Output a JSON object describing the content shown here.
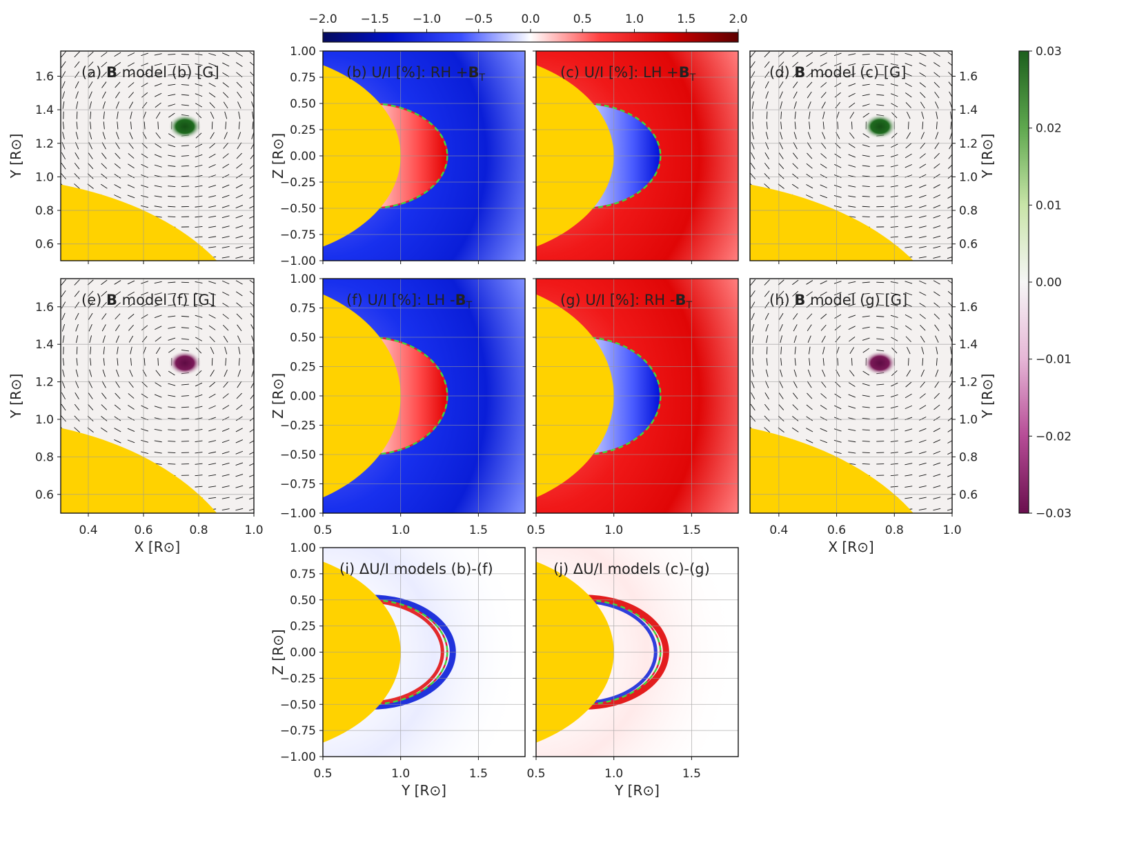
{
  "figure": {
    "colors": {
      "sun": "#FFD200",
      "field_bg": "#F4F1F0",
      "green_dot": "#1F6B1F",
      "purple_dot": "#7A1957",
      "contour_red": "#E0183B",
      "contour_green": "#3BDC3B",
      "grid": "#BBBBBB"
    },
    "ui_labels": {
      "x_axis_xy": "X [R⊙]",
      "y_axis_xy": "Y [R⊙]",
      "z_axis": "Z [R⊙]",
      "y_axis_yz": "Y [R⊙]"
    }
  },
  "chart_data": [
    {
      "id": "a",
      "type": "heatmap",
      "title_prefix": "(a) ",
      "title_bold": "B",
      "title_suffix": " model (b) [G]",
      "xlabel": "",
      "ylabel": "Y [R⊙]",
      "xlim": [
        0.3,
        1.0
      ],
      "ylim": [
        0.5,
        1.75
      ],
      "xticks": [
        0.4,
        0.6,
        0.8,
        1.0
      ],
      "yticks": [
        0.6,
        0.8,
        1.0,
        1.2,
        1.4,
        1.6
      ],
      "show_xticklabels": false,
      "ytick_side": "left",
      "sign": 1,
      "grid": true
    },
    {
      "id": "b",
      "type": "heatmap",
      "title_prefix": "(b) U/I [%]: RH +",
      "title_bold": "B",
      "title_sub": "T",
      "xlabel": "",
      "ylabel": "Z [R⊙]",
      "xlim": [
        0.5,
        1.8
      ],
      "ylim": [
        -1.0,
        1.0
      ],
      "xticks": [
        0.5,
        1.0,
        1.5
      ],
      "yticks": [
        -1.0,
        -0.75,
        -0.5,
        -0.25,
        0.0,
        0.25,
        0.5,
        0.75,
        1.0
      ],
      "show_xticklabels": false,
      "ytick_side": "left",
      "pattern": "blue_outer",
      "grid": true
    },
    {
      "id": "c",
      "type": "heatmap",
      "title_prefix": "(c) U/I [%]: LH +",
      "title_bold": "B",
      "title_sub": "T",
      "xlabel": "",
      "ylabel": "",
      "xlim": [
        0.5,
        1.8
      ],
      "ylim": [
        -1.0,
        1.0
      ],
      "xticks": [
        0.5,
        1.0,
        1.5
      ],
      "yticks": [
        -1.0,
        -0.75,
        -0.5,
        -0.25,
        0.0,
        0.25,
        0.5,
        0.75,
        1.0
      ],
      "show_xticklabels": false,
      "ytick_side": "none",
      "pattern": "red_outer",
      "grid": true
    },
    {
      "id": "d",
      "type": "heatmap",
      "title_prefix": "(d) ",
      "title_bold": "B",
      "title_suffix": " model (c) [G]",
      "xlabel": "",
      "ylabel": "Y [R⊙]",
      "xlim": [
        0.3,
        1.0
      ],
      "ylim": [
        0.5,
        1.75
      ],
      "xticks": [
        0.4,
        0.6,
        0.8,
        1.0
      ],
      "yticks": [
        0.6,
        0.8,
        1.0,
        1.2,
        1.4,
        1.6
      ],
      "show_xticklabels": false,
      "ytick_side": "right",
      "sign": 1,
      "grid": true
    },
    {
      "id": "e",
      "type": "heatmap",
      "title_prefix": "(e) ",
      "title_bold": "B",
      "title_suffix": " model (f) [G]",
      "xlabel": "X [R⊙]",
      "ylabel": "Y [R⊙]",
      "xlim": [
        0.3,
        1.0
      ],
      "ylim": [
        0.5,
        1.75
      ],
      "xticks": [
        0.4,
        0.6,
        0.8,
        1.0
      ],
      "yticks": [
        0.6,
        0.8,
        1.0,
        1.2,
        1.4,
        1.6
      ],
      "show_xticklabels": true,
      "ytick_side": "left",
      "sign": -1,
      "grid": true
    },
    {
      "id": "f",
      "type": "heatmap",
      "title_prefix": "(f) U/I [%]: LH -",
      "title_bold": "B",
      "title_sub": "T",
      "xlabel": "",
      "ylabel": "Z [R⊙]",
      "xlim": [
        0.5,
        1.8
      ],
      "ylim": [
        -1.0,
        1.0
      ],
      "xticks": [
        0.5,
        1.0,
        1.5
      ],
      "yticks": [
        -1.0,
        -0.75,
        -0.5,
        -0.25,
        0.0,
        0.25,
        0.5,
        0.75,
        1.0
      ],
      "show_xticklabels": true,
      "ytick_side": "left",
      "pattern": "blue_outer",
      "grid": true
    },
    {
      "id": "g",
      "type": "heatmap",
      "title_prefix": "(g) U/I [%]: RH -",
      "title_bold": "B",
      "title_sub": "T",
      "xlabel": "",
      "ylabel": "",
      "xlim": [
        0.5,
        1.8
      ],
      "ylim": [
        -1.0,
        1.0
      ],
      "xticks": [
        0.5,
        1.0,
        1.5
      ],
      "yticks": [
        -1.0,
        -0.75,
        -0.5,
        -0.25,
        0.0,
        0.25,
        0.5,
        0.75,
        1.0
      ],
      "show_xticklabels": true,
      "ytick_side": "none",
      "pattern": "red_outer",
      "grid": true
    },
    {
      "id": "h",
      "type": "heatmap",
      "title_prefix": "(h) ",
      "title_bold": "B",
      "title_suffix": " model (g) [G]",
      "xlabel": "X [R⊙]",
      "ylabel": "Y [R⊙]",
      "xlim": [
        0.3,
        1.0
      ],
      "ylim": [
        0.5,
        1.75
      ],
      "xticks": [
        0.4,
        0.6,
        0.8,
        1.0
      ],
      "yticks": [
        0.6,
        0.8,
        1.0,
        1.2,
        1.4,
        1.6
      ],
      "show_xticklabels": true,
      "ytick_side": "right",
      "sign": -1,
      "grid": true
    },
    {
      "id": "i",
      "type": "heatmap",
      "title_prefix": "(i) ΔU/I models (b)-(f)",
      "xlabel": "Y [R⊙]",
      "ylabel": "Z [R⊙]",
      "xlim": [
        0.5,
        1.8
      ],
      "ylim": [
        -1.0,
        1.0
      ],
      "xticks": [
        0.5,
        1.0,
        1.5
      ],
      "yticks": [
        -1.0,
        -0.75,
        -0.5,
        -0.25,
        0.0,
        0.25,
        0.5,
        0.75,
        1.0
      ],
      "show_xticklabels": true,
      "ytick_side": "left",
      "pattern": "diff_i",
      "grid": true
    },
    {
      "id": "j",
      "type": "heatmap",
      "title_prefix": "(j) ΔU/I models (c)-(g)",
      "xlabel": "Y [R⊙]",
      "ylabel": "",
      "xlim": [
        0.5,
        1.8
      ],
      "ylim": [
        -1.0,
        1.0
      ],
      "xticks": [
        0.5,
        1.0,
        1.5
      ],
      "yticks": [
        -1.0,
        -0.75,
        -0.5,
        -0.25,
        0.0,
        0.25,
        0.5,
        0.75,
        1.0
      ],
      "show_xticklabels": true,
      "ytick_side": "none",
      "pattern": "diff_j",
      "grid": true
    },
    {
      "id": "colorbar-top",
      "type": "colorbar",
      "orientation": "horizontal",
      "range": [
        -2.0,
        2.0
      ],
      "ticks": [
        -2.0,
        -1.5,
        -1.0,
        -0.5,
        0.0,
        0.5,
        1.0,
        1.5,
        2.0
      ],
      "tick_labels": [
        "−2.0",
        "−1.5",
        "−1.0",
        "−0.5",
        "0.0",
        "0.5",
        "1.0",
        "1.5",
        "2.0"
      ],
      "colors": [
        "#050B5E",
        "#0011CC",
        "#3A4FFF",
        "#FFFFFF",
        "#FF4040",
        "#D40000",
        "#5E0000"
      ]
    },
    {
      "id": "colorbar-right",
      "type": "colorbar",
      "orientation": "vertical",
      "range": [
        -0.03,
        0.03
      ],
      "ticks": [
        -0.03,
        -0.02,
        -0.01,
        0.0,
        0.01,
        0.02,
        0.03
      ],
      "tick_labels": [
        "−0.03",
        "−0.02",
        "−0.01",
        "0.00",
        "0.01",
        "0.02",
        "0.03"
      ],
      "colors": [
        "#6A0F4E",
        "#B64C96",
        "#E6B6D6",
        "#F6F6F6",
        "#C8E4A8",
        "#5FA84F",
        "#1C5F1C"
      ]
    }
  ]
}
